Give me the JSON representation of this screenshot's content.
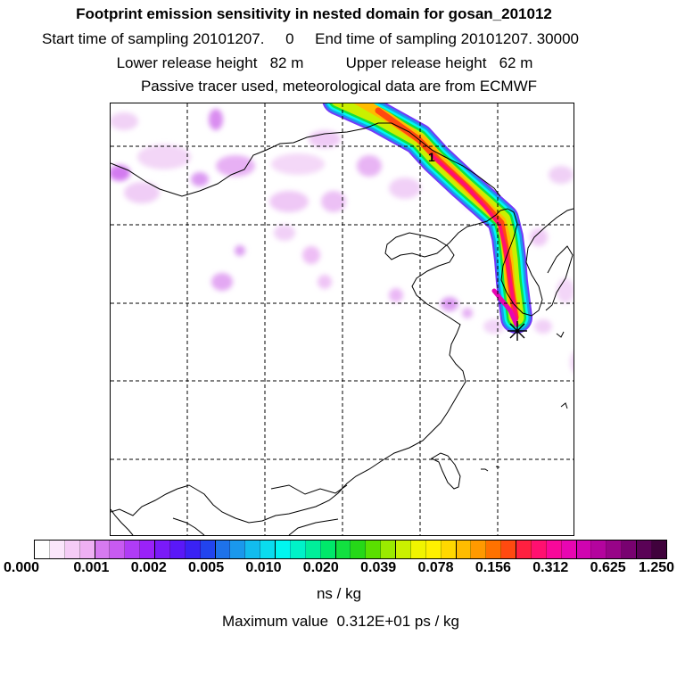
{
  "header": {
    "title": "Footprint emission sensitivity in nested domain for gosan_201012",
    "sampling_line": "Start time of sampling 20101207.     0     End time of sampling 20101207. 30000",
    "release_line": "Lower release height   82 m          Upper release height   62 m",
    "tracer_line": "Passive tracer used, meteorological data are from ECMWF"
  },
  "map": {
    "trajectory_label": "1",
    "receptor_marker": "gosan-receptor"
  },
  "colorbar": {
    "tick_labels": [
      "0.000",
      "0.001",
      "0.002",
      "0.005",
      "0.010",
      "0.020",
      "0.039",
      "0.078",
      "0.156",
      "0.312",
      "0.625",
      "1.250"
    ],
    "colors": [
      "#ffffff",
      "#fbe6fb",
      "#f5ccf6",
      "#eeb0f3",
      "#d67af0",
      "#c85af2",
      "#b03cf6",
      "#9a22f8",
      "#7a1af8",
      "#5a18f8",
      "#3a22f4",
      "#2244ee",
      "#1e72ea",
      "#1a98ec",
      "#12bcee",
      "#0adcee",
      "#00f6f0",
      "#00f2c8",
      "#00ee9a",
      "#00e86a",
      "#12e040",
      "#26d818",
      "#5ae000",
      "#9aea00",
      "#caf000",
      "#f0f400",
      "#fff000",
      "#ffd800",
      "#ffbc00",
      "#ff9a00",
      "#ff7200",
      "#ff4a10",
      "#ff2040",
      "#ff1070",
      "#f8089a",
      "#e806b2",
      "#d004b0",
      "#b4049e",
      "#980488",
      "#780270",
      "#5a0256",
      "#40023c"
    ]
  },
  "units": "ns / kg",
  "max_value": "Maximum value  0.312E+01 ps / kg"
}
